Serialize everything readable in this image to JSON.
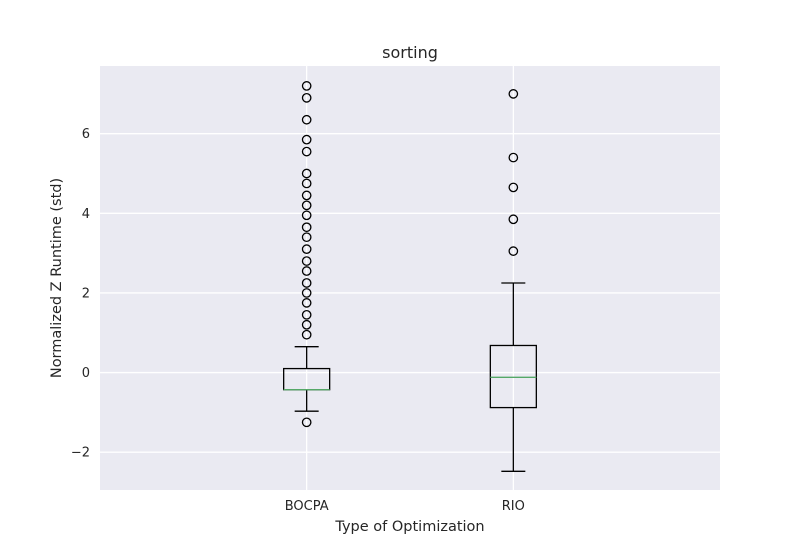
{
  "chart_data": {
    "type": "box",
    "title": "sorting",
    "xlabel": "Type of Optimization",
    "ylabel": "Normalized Z Runtime (std)",
    "categories": [
      "BOCPA",
      "RIO"
    ],
    "ylim": [
      -2.95,
      7.7
    ],
    "yticks": [
      -2,
      0,
      2,
      4,
      6
    ],
    "ytick_labels": [
      "−2",
      "0",
      "2",
      "4",
      "6"
    ],
    "grid": true,
    "boxes": [
      {
        "label": "BOCPA",
        "whisker_low": -0.97,
        "q1": -0.43,
        "median": -0.43,
        "q3": 0.1,
        "whisker_high": 0.65,
        "outliers": [
          -1.25,
          0.95,
          1.2,
          1.45,
          1.75,
          2.0,
          2.25,
          2.55,
          2.8,
          3.1,
          3.4,
          3.65,
          3.95,
          4.2,
          4.45,
          4.75,
          5.0,
          5.55,
          5.85,
          6.35,
          6.9,
          7.2
        ]
      },
      {
        "label": "RIO",
        "whisker_low": -2.48,
        "q1": -0.88,
        "median": -0.12,
        "q3": 0.68,
        "whisker_high": 2.25,
        "outliers": [
          3.05,
          3.85,
          4.65,
          5.4,
          7.0
        ]
      }
    ],
    "colors": {
      "plot_background": "#eaeaf2",
      "grid": "#ffffff",
      "box": "#000000",
      "median": "#55a868",
      "text": "#262626"
    }
  }
}
